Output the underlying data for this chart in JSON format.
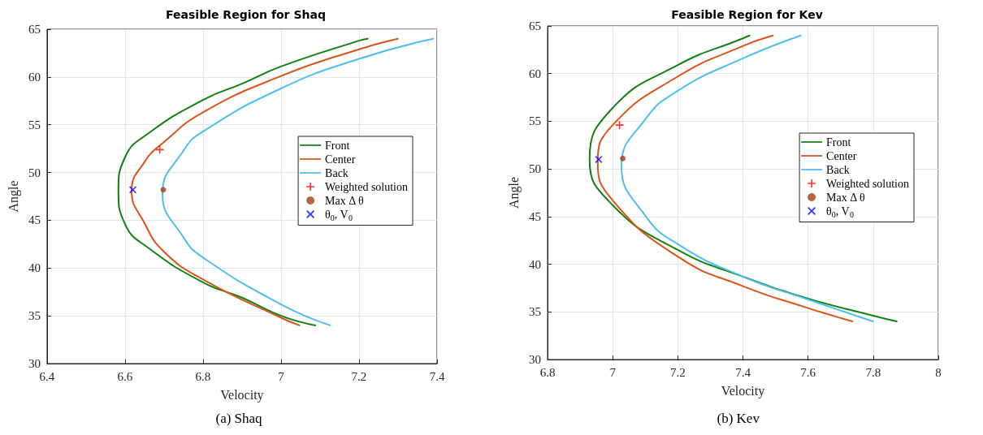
{
  "chart_data": [
    {
      "type": "line",
      "title": "Feasible Region for Shaq",
      "xlabel": "Velocity",
      "ylabel": "Angle",
      "annotations": [
        "(a) Shaq"
      ],
      "xlim": [
        6.4,
        7.4
      ],
      "xticks": [
        6.4,
        6.6,
        6.8,
        7,
        7.2,
        7.4
      ],
      "ylim": [
        30,
        65
      ],
      "yticks": [
        30,
        35,
        40,
        45,
        50,
        55,
        60,
        65
      ],
      "grid": true,
      "legend": "right",
      "series": [
        {
          "name": "Front",
          "color": "#108010",
          "marker": "none",
          "x": [
            7.088,
            7.0,
            6.9,
            6.8,
            6.66,
            6.6,
            6.583,
            6.6,
            6.66,
            6.8,
            6.9,
            7.0,
            7.2,
            7.222
          ],
          "values": [
            34,
            35.0,
            36.9,
            38.5,
            42.1,
            44.6,
            48.1,
            51.6,
            54.1,
            57.6,
            59.3,
            61.1,
            63.8,
            64
          ]
        },
        {
          "name": "Center",
          "color": "#d95319",
          "marker": "none",
          "x": [
            7.047,
            7.0,
            6.8,
            6.7,
            6.65,
            6.617,
            6.65,
            6.7,
            6.8,
            7.0,
            7.2,
            7.299
          ],
          "values": [
            34,
            34.8,
            38.8,
            41.7,
            44.7,
            48.1,
            51.1,
            53.2,
            56.3,
            60.1,
            62.9,
            64
          ]
        },
        {
          "name": "Back",
          "color": "#4dbeee",
          "marker": "none",
          "x": [
            7.126,
            7.0,
            6.8,
            6.75,
            6.696,
            6.75,
            6.8,
            7.0,
            7.2,
            7.39
          ],
          "values": [
            34,
            36.2,
            41.1,
            43.2,
            47.8,
            52.3,
            54.3,
            58.8,
            61.9,
            64
          ]
        },
        {
          "name": "Weighted solution",
          "type": "scatter",
          "marker": "plus",
          "color": "#ff0000",
          "x": [
            6.689
          ],
          "values": [
            52.4
          ]
        },
        {
          "name": "Max Δ θ",
          "type": "scatter",
          "marker": "circle",
          "color": "#a2400f",
          "x": [
            6.698
          ],
          "values": [
            48.2
          ]
        },
        {
          "name": "θ$_{0}$, V$_{0}$",
          "type": "scatter",
          "marker": "cross",
          "color": "#0000ff",
          "x": [
            6.62
          ],
          "values": [
            48.2
          ]
        }
      ]
    },
    {
      "type": "line",
      "title": "Feasible Region for Kev",
      "xlabel": "Velocity",
      "ylabel": "Angle",
      "annotations": [
        "(b) Kev"
      ],
      "xlim": [
        6.8,
        8
      ],
      "xticks": [
        6.8,
        7,
        7.2,
        7.4,
        7.6,
        7.8,
        8
      ],
      "ylim": [
        30,
        65
      ],
      "yticks": [
        30,
        35,
        40,
        45,
        50,
        55,
        60,
        65
      ],
      "grid": true,
      "legend": "right",
      "series": [
        {
          "name": "Front",
          "color": "#108010",
          "marker": "none",
          "x": [
            7.872,
            7.8,
            7.6,
            7.4,
            7.2,
            7.0,
            6.929,
            7.0,
            7.2,
            7.4,
            7.42
          ],
          "values": [
            34,
            34.6,
            36.4,
            38.7,
            41.5,
            46.2,
            51.0,
            56.4,
            60.9,
            63.7,
            64
          ]
        },
        {
          "name": "Center",
          "color": "#d95319",
          "marker": "none",
          "x": [
            7.736,
            7.6,
            7.4,
            7.2,
            7.0,
            6.954,
            7.0,
            7.2,
            7.4,
            7.492
          ],
          "values": [
            34,
            35.4,
            37.7,
            40.8,
            46.7,
            50.7,
            54.6,
            59.7,
            62.9,
            64
          ]
        },
        {
          "name": "Back",
          "color": "#4dbeee",
          "marker": "none",
          "x": [
            7.799,
            7.6,
            7.4,
            7.2,
            7.1,
            7.027,
            7.1,
            7.2,
            7.4,
            7.578
          ],
          "values": [
            34,
            36.3,
            38.7,
            42.1,
            45.1,
            50.3,
            55.2,
            58.2,
            61.6,
            64
          ]
        },
        {
          "name": "Weighted solution",
          "type": "scatter",
          "marker": "plus",
          "color": "#ff0000",
          "x": [
            7.021
          ],
          "values": [
            54.6
          ]
        },
        {
          "name": "Max Δ θ",
          "type": "scatter",
          "marker": "circle",
          "color": "#a2400f",
          "x": [
            7.031
          ],
          "values": [
            51.1
          ]
        },
        {
          "name": "θ$_{0}$, V$_{0}$",
          "type": "scatter",
          "marker": "cross",
          "color": "#0000ff",
          "x": [
            6.957
          ],
          "values": [
            51.0
          ]
        }
      ]
    }
  ]
}
